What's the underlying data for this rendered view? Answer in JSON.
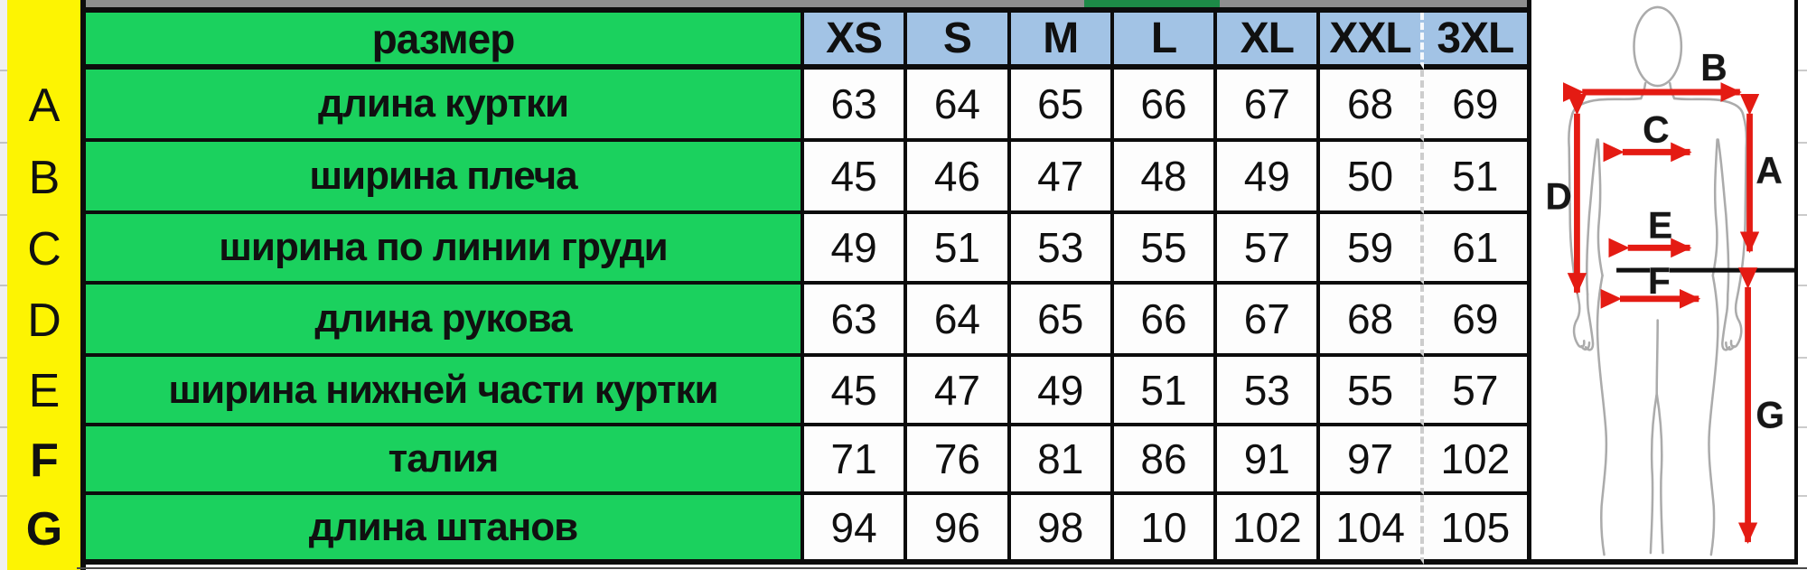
{
  "table": {
    "header_label": "размер",
    "size_columns": [
      "XS",
      "S",
      "M",
      "L",
      "XL",
      "XXL",
      "3XL"
    ],
    "rows": [
      {
        "letter": "A",
        "label": "длина куртки",
        "values": [
          "63",
          "64",
          "65",
          "66",
          "67",
          "68",
          "69"
        ]
      },
      {
        "letter": "B",
        "label": "ширина плеча",
        "values": [
          "45",
          "46",
          "47",
          "48",
          "49",
          "50",
          "51"
        ]
      },
      {
        "letter": "C",
        "label": "ширина по линии груди",
        "values": [
          "49",
          "51",
          "53",
          "55",
          "57",
          "59",
          "61"
        ]
      },
      {
        "letter": "D",
        "label": "длина рукова",
        "values": [
          "63",
          "64",
          "65",
          "66",
          "67",
          "68",
          "69"
        ]
      },
      {
        "letter": "E",
        "label": "ширина нижней части куртки",
        "values": [
          "45",
          "47",
          "49",
          "51",
          "53",
          "55",
          "57"
        ]
      },
      {
        "letter": "F",
        "label": "талия",
        "values": [
          "71",
          "76",
          "81",
          "86",
          "91",
          "97",
          "102"
        ]
      },
      {
        "letter": "G",
        "label": "длина штанов",
        "values": [
          "94",
          "96",
          "98",
          "10",
          "102",
          "104",
          "105"
        ]
      }
    ]
  },
  "diagram": {
    "measurement_labels": {
      "A": "A",
      "B": "B",
      "C": "C",
      "D": "D",
      "E": "E",
      "F": "F",
      "G": "G"
    }
  },
  "colors": {
    "row_label_bg": "#1bd15e",
    "size_header_bg": "#a2c3e5",
    "letter_column_bg": "#fdf402",
    "arrow_red": "#e41b13",
    "border_black": "#0c0c0c",
    "body_outline_gray": "#ababab"
  }
}
